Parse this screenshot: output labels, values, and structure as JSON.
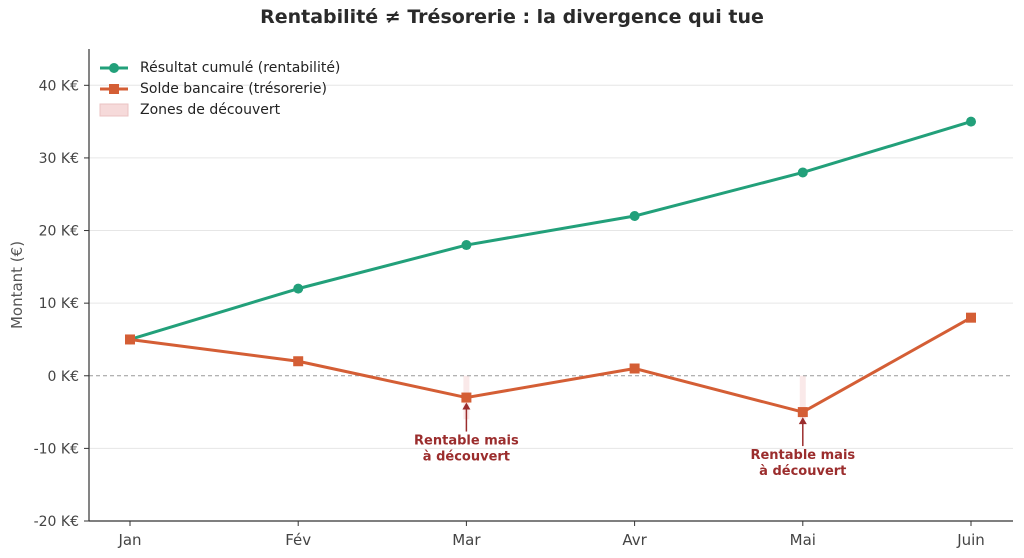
{
  "colors": {
    "profit": "#22A07A",
    "cash": "#D45E35",
    "overdraft_zone": "#F6DADA",
    "annotation": "#9B2D2D",
    "axis": "#333333",
    "grid": "#E6E6E6",
    "zero_line": "#999999"
  },
  "chart_data": {
    "type": "line",
    "title": "Rentabilité ≠ Trésorerie : la divergence qui tue",
    "xlabel": "",
    "ylabel": "Montant (€)",
    "categories": [
      "Jan",
      "Fév",
      "Mar",
      "Avr",
      "Mai",
      "Juin"
    ],
    "ylim": [
      -20,
      45
    ],
    "yticks": [
      -20,
      -10,
      0,
      10,
      20,
      30,
      40
    ],
    "ytick_labels": [
      "-20 K€",
      "-10 K€",
      "0 K€",
      "10 K€",
      "20 K€",
      "30 K€",
      "40 K€"
    ],
    "grid": "horizontal",
    "legend_position": "top-left",
    "series": [
      {
        "name": "Résultat cumulé (rentabilité)",
        "marker": "circle",
        "values": [
          5,
          12,
          18,
          22,
          28,
          35
        ]
      },
      {
        "name": "Solde bancaire (trésorerie)",
        "marker": "square",
        "values": [
          5,
          2,
          -3,
          1,
          -5,
          8
        ]
      }
    ],
    "zones": [
      {
        "name": "Zones de découvert",
        "categories": [
          "Mar",
          "Mai"
        ]
      }
    ],
    "annotations": [
      {
        "category": "Mar",
        "value": -3,
        "lines": [
          "Rentable mais",
          "à découvert"
        ]
      },
      {
        "category": "Mai",
        "value": -5,
        "lines": [
          "Rentable mais",
          "à découvert"
        ]
      }
    ]
  }
}
